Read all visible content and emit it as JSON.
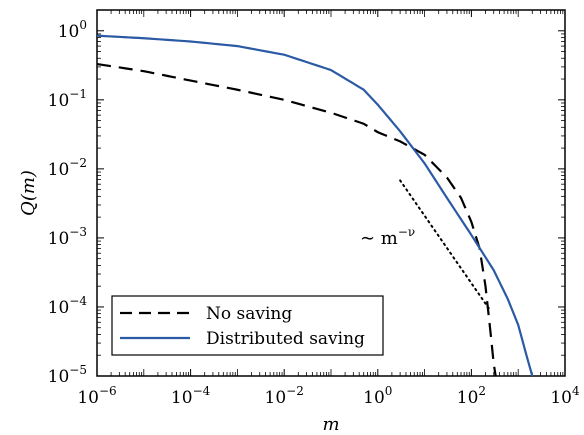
{
  "chart_data": {
    "type": "line",
    "xscale": "log",
    "yscale": "log",
    "xlim": [
      1e-06,
      10000.0
    ],
    "ylim": [
      1e-05,
      2
    ],
    "xlabel": "m",
    "ylabel": "Q(m)",
    "x_ticks": [
      {
        "value": 1e-06,
        "base": "10",
        "exp": "−6"
      },
      {
        "value": 0.0001,
        "base": "10",
        "exp": "−4"
      },
      {
        "value": 0.01,
        "base": "10",
        "exp": "−2"
      },
      {
        "value": 1,
        "base": "10",
        "exp": "0"
      },
      {
        "value": 100.0,
        "base": "10",
        "exp": "2"
      },
      {
        "value": 10000.0,
        "base": "10",
        "exp": "4"
      }
    ],
    "y_ticks": [
      {
        "value": 1e-05,
        "base": "10",
        "exp": "−5"
      },
      {
        "value": 0.0001,
        "base": "10",
        "exp": "−4"
      },
      {
        "value": 0.001,
        "base": "10",
        "exp": "−3"
      },
      {
        "value": 0.01,
        "base": "10",
        "exp": "−2"
      },
      {
        "value": 0.1,
        "base": "10",
        "exp": "−1"
      },
      {
        "value": 1,
        "base": "10",
        "exp": "0"
      }
    ],
    "series": [
      {
        "name": "No saving",
        "style": "dashed",
        "color": "#000000",
        "x": [
          1e-06,
          1e-05,
          0.0001,
          0.001,
          0.01,
          0.1,
          0.5,
          1,
          3,
          10,
          30,
          60,
          100,
          150,
          200,
          250,
          300,
          330
        ],
        "y": [
          0.33,
          0.26,
          0.19,
          0.14,
          0.1,
          0.065,
          0.045,
          0.034,
          0.025,
          0.016,
          0.0075,
          0.0038,
          0.0017,
          0.0007,
          0.0002,
          5e-05,
          1.5e-05,
          1e-05
        ]
      },
      {
        "name": "Distributed saving",
        "style": "solid",
        "color": "#2b5aa5",
        "x": [
          1e-06,
          1e-05,
          0.0001,
          0.001,
          0.01,
          0.1,
          0.5,
          1,
          3,
          10,
          30,
          100,
          300,
          600,
          1000,
          1500,
          2000
        ],
        "y": [
          0.85,
          0.78,
          0.7,
          0.6,
          0.45,
          0.27,
          0.14,
          0.085,
          0.035,
          0.012,
          0.0038,
          0.0011,
          0.00034,
          0.00013,
          5.5e-05,
          2e-05,
          1e-05
        ]
      }
    ],
    "reference_line": {
      "style": "dotted",
      "x": [
        3,
        250
      ],
      "y": [
        0.0068,
        9e-05
      ]
    },
    "annotation": {
      "prefix": "∼ m",
      "exp": "−ν",
      "x": 3.5,
      "y": 0.0013
    },
    "legend": {
      "position": "bottom-left",
      "entries": [
        {
          "label": "No saving",
          "style": "dashed",
          "color": "#000000"
        },
        {
          "label": "Distributed saving",
          "style": "solid",
          "color": "#2b5aa5"
        }
      ]
    },
    "grid": false
  }
}
